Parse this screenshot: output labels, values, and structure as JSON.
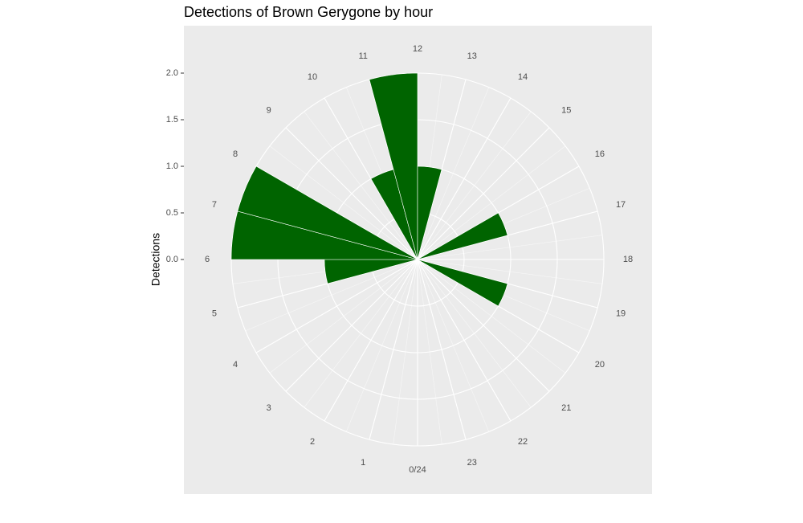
{
  "chart_data": {
    "type": "polar-bar",
    "title": "Detections of Brown Gerygone by hour",
    "y_label": "Detections",
    "x": [
      0,
      1,
      2,
      3,
      4,
      5,
      6,
      7,
      8,
      9,
      10,
      11,
      12,
      13,
      14,
      15,
      16,
      17,
      18,
      19,
      20,
      21,
      22,
      23
    ],
    "values": [
      0,
      0,
      0,
      0,
      0,
      1,
      2,
      2,
      0,
      0,
      1,
      2,
      1,
      0,
      0,
      0,
      1,
      0,
      0,
      1,
      0,
      0,
      0,
      0
    ],
    "color": "#006400",
    "xlim": [
      0,
      24
    ],
    "xticks": [
      {
        "value": 0,
        "label": "0/24"
      },
      1,
      2,
      3,
      4,
      5,
      6,
      7,
      8,
      9,
      10,
      11,
      12,
      13,
      14,
      15,
      16,
      17,
      18,
      19,
      20,
      21,
      22,
      23
    ],
    "ylim": [
      0,
      2
    ],
    "yticks": [
      {
        "value": 0,
        "label": "0.0"
      },
      {
        "value": 0.5,
        "label": "0.5"
      },
      {
        "value": 1,
        "label": "1.0"
      },
      {
        "value": 1.5,
        "label": "1.5"
      },
      {
        "value": 2,
        "label": "2.0"
      }
    ],
    "grid": true
  }
}
